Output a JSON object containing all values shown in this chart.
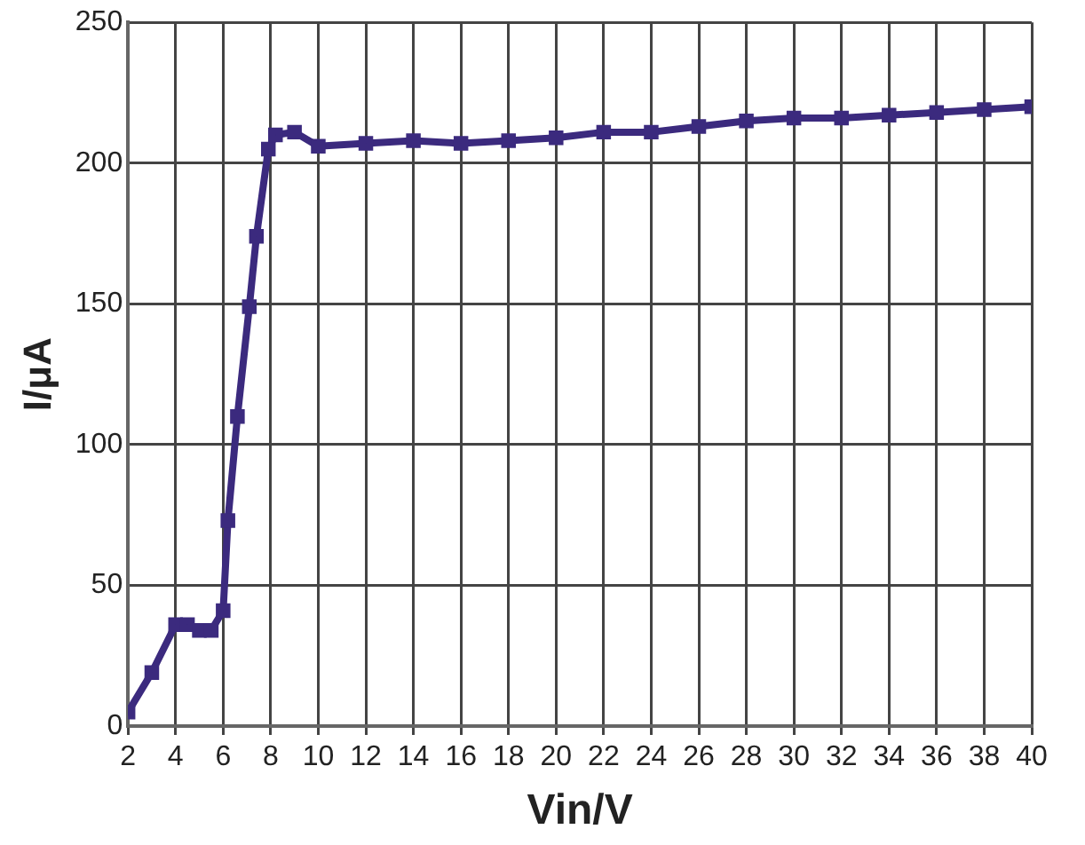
{
  "chart_data": {
    "type": "line",
    "xlabel": "Vin/V",
    "ylabel": "I/μA",
    "x": [
      2,
      3,
      4,
      4.5,
      5,
      5.5,
      6,
      6.2,
      6.6,
      7.1,
      7.4,
      7.9,
      8.2,
      9,
      10,
      12,
      14,
      16,
      18,
      20,
      22,
      24,
      26,
      28,
      30,
      32,
      34,
      36,
      38,
      40
    ],
    "series": [
      {
        "color": "#3b2a7e",
        "values": [
          5,
          19,
          36,
          36,
          34,
          34,
          41,
          73,
          110,
          149,
          174,
          205,
          210,
          211,
          206,
          207,
          208,
          207,
          208,
          209,
          211,
          211,
          213,
          215,
          216,
          216,
          217,
          218,
          219,
          220
        ]
      }
    ],
    "xlim": [
      2,
      40
    ],
    "xticks": [
      2,
      4,
      6,
      8,
      10,
      12,
      14,
      16,
      18,
      20,
      22,
      24,
      26,
      28,
      30,
      32,
      34,
      36,
      38,
      40
    ],
    "ylim": [
      0,
      250
    ],
    "yticks": [
      0,
      50,
      100,
      150,
      200,
      250
    ],
    "grid": true,
    "legend": false,
    "marker": "square",
    "line_style": "solid"
  }
}
